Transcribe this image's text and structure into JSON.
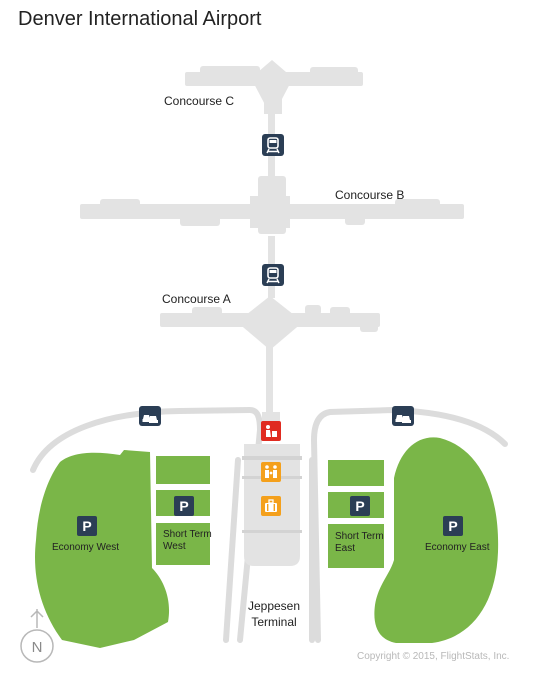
{
  "title": "Denver International Airport",
  "labels": {
    "concourse_c": "Concourse C",
    "concourse_b": "Concourse B",
    "concourse_a": "Concourse A",
    "economy_west": "Economy West",
    "short_term_west": [
      "Short Term",
      "West"
    ],
    "short_term_east": [
      "Short Term",
      "East"
    ],
    "economy_east": "Economy East",
    "terminal": [
      "Jeppesen",
      "Terminal"
    ],
    "parking_letter": "P",
    "compass_letter": "N"
  },
  "copyright": "Copyright © 2015, FlightStats, Inc.",
  "colors": {
    "building": "#e3e3e3",
    "parking_lot": "#7ab648",
    "road": "#dcdcdc",
    "icon_dark": "#2b3e55",
    "icon_red": "#e02b20",
    "icon_orange": "#f4a01c",
    "text": "#222222",
    "copyright": "#b8b8b8"
  },
  "icons": [
    "train-icon",
    "car-icon",
    "checkin-icon",
    "family-icon",
    "baggage-icon",
    "parking-icon",
    "compass-icon"
  ]
}
